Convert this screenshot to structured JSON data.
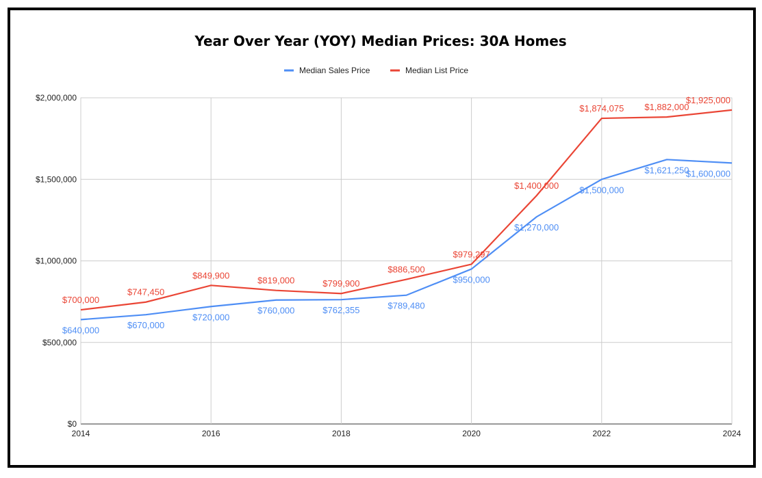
{
  "chart_data": {
    "type": "line",
    "title": "Year Over Year (YOY) Median Prices: 30A Homes",
    "xlabel": "",
    "ylabel": "",
    "x": [
      2014,
      2015,
      2016,
      2017,
      2018,
      2019,
      2020,
      2021,
      2022,
      2023,
      2024
    ],
    "x_tick_labels": [
      "2014",
      "2016",
      "2018",
      "2020",
      "2022",
      "2024"
    ],
    "y_tick_labels": [
      "$0",
      "$500,000",
      "$1,000,000",
      "$1,500,000",
      "$2,000,000"
    ],
    "ylim": [
      0,
      2000000
    ],
    "grid": true,
    "legend_position": "top",
    "series": [
      {
        "name": "Median Sales Price",
        "color": "#4e8ef5",
        "values": [
          640000,
          670000,
          720000,
          760000,
          762355,
          789480,
          950000,
          1270000,
          1500000,
          1621250,
          1600000
        ],
        "labels": [
          "$640,000",
          "$670,000",
          "$720,000",
          "$760,000",
          "$762,355",
          "$789,480",
          "$950,000",
          "$1,270,000",
          "$1,500,000",
          "$1,621,250",
          "$1,600,000"
        ]
      },
      {
        "name": "Median List Price",
        "color": "#ea4535",
        "values": [
          700000,
          747450,
          849900,
          819000,
          799900,
          886500,
          979297,
          1400000,
          1874075,
          1882000,
          1925000
        ],
        "labels": [
          "$700,000",
          "$747,450",
          "$849,900",
          "$819,000",
          "$799,900",
          "$886,500",
          "$979,297",
          "$1,400,000",
          "$1,874,075",
          "$1,882,000",
          "$1,925,000"
        ]
      }
    ]
  }
}
